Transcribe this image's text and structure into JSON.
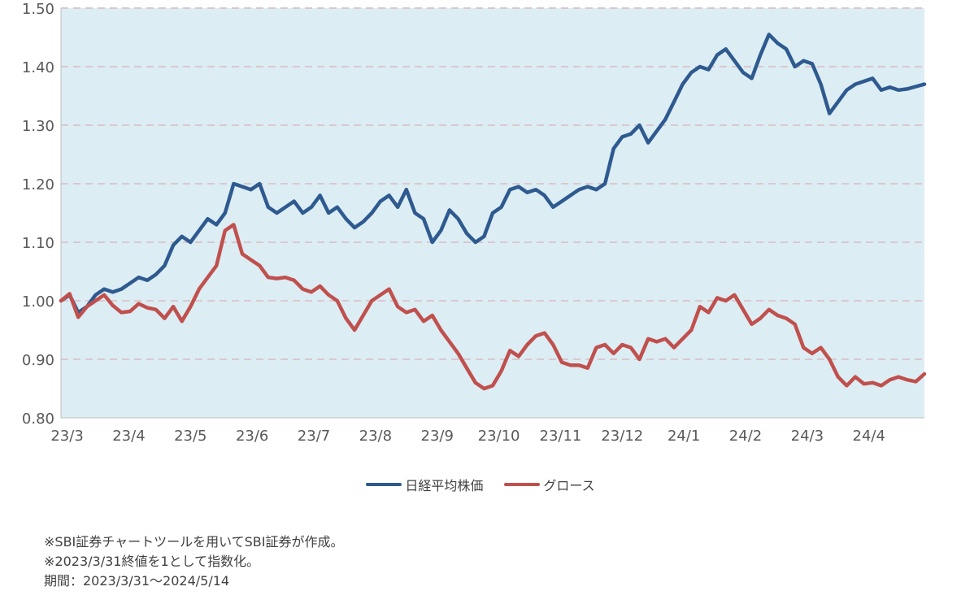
{
  "colors": {
    "plot_bg": "#dcedf4",
    "grid": "#d9c9cc",
    "nikkei": "#2e5a8f",
    "growth": "#c0504d",
    "axis": "#595959"
  },
  "chart_data": {
    "type": "line",
    "title": "",
    "xlabel": "",
    "ylabel": "",
    "ylim": [
      0.8,
      1.5
    ],
    "y_ticks": [
      "0.80",
      "0.90",
      "1.00",
      "1.10",
      "1.20",
      "1.30",
      "1.40",
      "1.50"
    ],
    "x_tick_labels": [
      "23/3",
      "23/4",
      "23/5",
      "23/6",
      "23/7",
      "23/8",
      "23/9",
      "23/10",
      "23/11",
      "23/12",
      "24/1",
      "24/2",
      "24/3",
      "24/4"
    ],
    "grid": "horizontal-dashed",
    "legend_position": "bottom",
    "x_index_range": [
      0,
      100
    ],
    "series": [
      {
        "name": "日経平均株価",
        "color": "#2e5a8f",
        "x": [
          0,
          1,
          2,
          3,
          4,
          5,
          6,
          7,
          8,
          9,
          10,
          11,
          12,
          13,
          14,
          15,
          16,
          17,
          18,
          19,
          20,
          21,
          22,
          23,
          24,
          25,
          26,
          27,
          28,
          29,
          30,
          31,
          32,
          33,
          34,
          35,
          36,
          37,
          38,
          39,
          40,
          41,
          42,
          43,
          44,
          45,
          46,
          47,
          48,
          49,
          50,
          51,
          52,
          53,
          54,
          55,
          56,
          57,
          58,
          59,
          60,
          61,
          62,
          63,
          64,
          65,
          66,
          67,
          68,
          69,
          70,
          71,
          72,
          73,
          74,
          75,
          76,
          77,
          78,
          79,
          80,
          81,
          82,
          83,
          84,
          85,
          86,
          87,
          88,
          89,
          90,
          91,
          92,
          93,
          94,
          95,
          96,
          97,
          98,
          99,
          100
        ],
        "values": [
          1.0,
          1.01,
          0.98,
          0.99,
          1.01,
          1.02,
          1.015,
          1.02,
          1.03,
          1.04,
          1.035,
          1.045,
          1.06,
          1.095,
          1.11,
          1.1,
          1.12,
          1.14,
          1.13,
          1.15,
          1.2,
          1.195,
          1.19,
          1.2,
          1.16,
          1.15,
          1.16,
          1.17,
          1.15,
          1.16,
          1.18,
          1.15,
          1.16,
          1.14,
          1.125,
          1.135,
          1.15,
          1.17,
          1.18,
          1.16,
          1.19,
          1.15,
          1.14,
          1.1,
          1.12,
          1.155,
          1.14,
          1.115,
          1.1,
          1.11,
          1.15,
          1.16,
          1.19,
          1.195,
          1.185,
          1.19,
          1.18,
          1.16,
          1.17,
          1.18,
          1.19,
          1.195,
          1.19,
          1.2,
          1.26,
          1.28,
          1.285,
          1.3,
          1.27,
          1.29,
          1.31,
          1.34,
          1.37,
          1.39,
          1.4,
          1.395,
          1.42,
          1.43,
          1.41,
          1.39,
          1.38,
          1.42,
          1.455,
          1.44,
          1.43,
          1.4,
          1.41,
          1.405,
          1.37,
          1.32,
          1.34,
          1.36,
          1.37,
          1.375,
          1.38,
          1.36,
          1.365,
          1.36,
          1.362,
          1.366,
          1.37
        ]
      },
      {
        "name": "グロース",
        "color": "#c0504d",
        "x": [
          0,
          1,
          2,
          3,
          4,
          5,
          6,
          7,
          8,
          9,
          10,
          11,
          12,
          13,
          14,
          15,
          16,
          17,
          18,
          19,
          20,
          21,
          22,
          23,
          24,
          25,
          26,
          27,
          28,
          29,
          30,
          31,
          32,
          33,
          34,
          35,
          36,
          37,
          38,
          39,
          40,
          41,
          42,
          43,
          44,
          45,
          46,
          47,
          48,
          49,
          50,
          51,
          52,
          53,
          54,
          55,
          56,
          57,
          58,
          59,
          60,
          61,
          62,
          63,
          64,
          65,
          66,
          67,
          68,
          69,
          70,
          71,
          72,
          73,
          74,
          75,
          76,
          77,
          78,
          79,
          80,
          81,
          82,
          83,
          84,
          85,
          86,
          87,
          88,
          89,
          90,
          91,
          92,
          93,
          94,
          95,
          96,
          97,
          98,
          99,
          100
        ],
        "values": [
          1.0,
          1.012,
          0.972,
          0.99,
          1.0,
          1.01,
          0.992,
          0.98,
          0.982,
          0.995,
          0.988,
          0.985,
          0.97,
          0.99,
          0.965,
          0.99,
          1.02,
          1.04,
          1.06,
          1.12,
          1.13,
          1.08,
          1.07,
          1.06,
          1.04,
          1.038,
          1.04,
          1.035,
          1.02,
          1.015,
          1.025,
          1.01,
          1.0,
          0.97,
          0.95,
          0.975,
          1.0,
          1.01,
          1.02,
          0.99,
          0.98,
          0.985,
          0.965,
          0.975,
          0.95,
          0.93,
          0.91,
          0.885,
          0.86,
          0.85,
          0.855,
          0.88,
          0.915,
          0.905,
          0.925,
          0.94,
          0.945,
          0.925,
          0.895,
          0.89,
          0.89,
          0.885,
          0.92,
          0.925,
          0.91,
          0.925,
          0.92,
          0.9,
          0.935,
          0.93,
          0.935,
          0.92,
          0.935,
          0.95,
          0.99,
          0.98,
          1.005,
          1.0,
          1.01,
          0.985,
          0.96,
          0.97,
          0.985,
          0.975,
          0.97,
          0.96,
          0.92,
          0.91,
          0.92,
          0.9,
          0.87,
          0.855,
          0.87,
          0.858,
          0.86,
          0.855,
          0.865,
          0.87,
          0.865,
          0.862,
          0.875
        ]
      }
    ]
  },
  "legend": {
    "item_1": "日経平均株価",
    "item_2": "グロース"
  },
  "notes": {
    "line_1": "※SBI証券チャートツールを用いてSBI証券が作成。",
    "line_2": "※2023/3/31終値を1として指数化。",
    "line_3": "期間：2023/3/31～2024/5/14"
  }
}
